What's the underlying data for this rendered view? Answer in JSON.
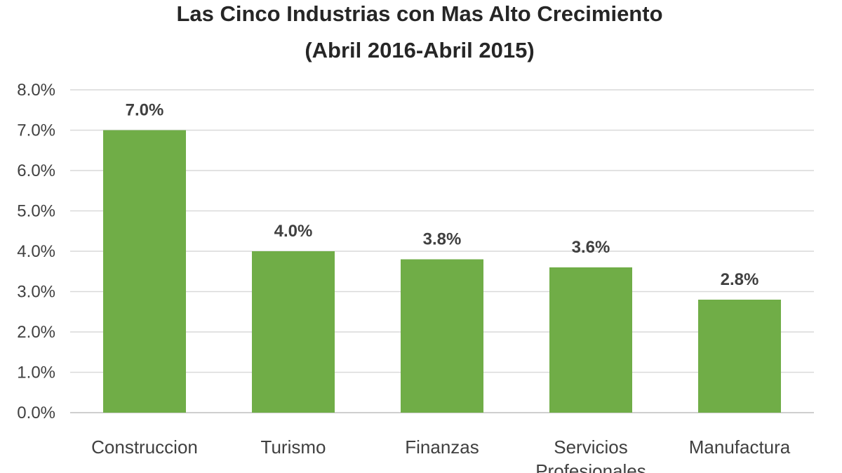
{
  "chart_data": {
    "type": "bar",
    "title": "Las Cinco Industrias con Mas Alto Crecimiento",
    "subtitle": "(Abril 2016-Abril 2015)",
    "xlabel": "",
    "ylabel": "",
    "categories": [
      [
        "Construccion"
      ],
      [
        "Turismo"
      ],
      [
        "Finanzas"
      ],
      [
        "Servicios",
        "Profesionales"
      ],
      [
        "Manufactura"
      ]
    ],
    "values": [
      7.0,
      4.0,
      3.8,
      3.6,
      2.8
    ],
    "data_labels": [
      "7.0%",
      "4.0%",
      "3.8%",
      "3.6%",
      "2.8%"
    ],
    "y_ticks": [
      0,
      1,
      2,
      3,
      4,
      5,
      6,
      7,
      8
    ],
    "y_tick_labels": [
      "0.0%",
      "1.0%",
      "2.0%",
      "3.0%",
      "4.0%",
      "5.0%",
      "6.0%",
      "7.0%",
      "8.0%"
    ],
    "ylim": [
      0,
      8
    ],
    "grid": true,
    "legend": "none",
    "colors": {
      "bar": "#70ad47"
    }
  }
}
